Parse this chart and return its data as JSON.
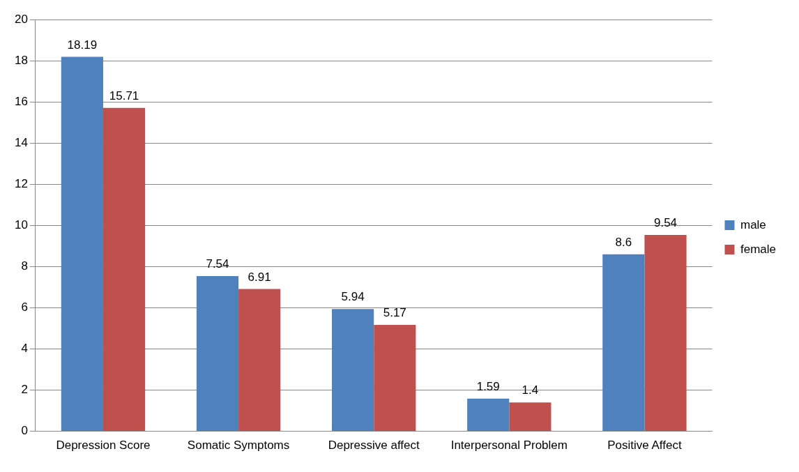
{
  "chart_data": {
    "type": "bar",
    "categories": [
      "Depression Score",
      "Somatic Symptoms",
      "Depressive affect",
      "Interpersonal Problem",
      "Positive Affect"
    ],
    "series": [
      {
        "name": "male",
        "color": "#4f81bd",
        "values": [
          18.19,
          7.54,
          5.94,
          1.59,
          8.6
        ]
      },
      {
        "name": "female",
        "color": "#c0504d",
        "values": [
          15.71,
          6.91,
          5.17,
          1.4,
          9.54
        ]
      }
    ],
    "ylim": [
      0,
      20
    ],
    "yticks": [
      0,
      2,
      4,
      6,
      8,
      10,
      12,
      14,
      16,
      18,
      20
    ],
    "grid": "y",
    "legend": "right",
    "data_labels": true
  }
}
